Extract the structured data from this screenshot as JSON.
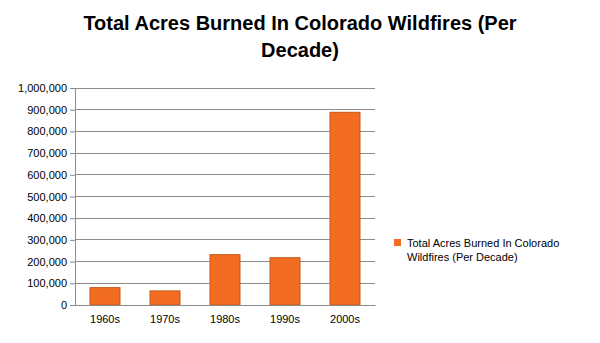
{
  "chart_data": {
    "type": "bar",
    "title": "Total Acres Burned In Colorado Wildfires (Per Decade)",
    "categories": [
      "1960s",
      "1970s",
      "1980s",
      "1990s",
      "2000s"
    ],
    "series": [
      {
        "name": "Total Acres Burned In Colorado Wildfires (Per Decade)",
        "color": "#f26d21",
        "values": [
          80000,
          65000,
          232000,
          218000,
          888000
        ]
      }
    ],
    "ylim": [
      0,
      1000000
    ],
    "yticks": [
      0,
      {
        "value": 100000,
        "label": "100,000"
      },
      {
        "value": 200000,
        "label": "200,000"
      },
      {
        "value": 300000,
        "label": "300,000"
      },
      {
        "value": 400000,
        "label": "400,000"
      },
      {
        "value": 500000,
        "label": "500,000"
      },
      {
        "value": 600000,
        "label": "600,000"
      },
      {
        "value": 700000,
        "label": "700,000"
      },
      {
        "value": 800000,
        "label": "800,000"
      },
      {
        "value": 900000,
        "label": "900,000"
      },
      {
        "value": 1000000,
        "label": "1,000,000"
      }
    ],
    "grid": true,
    "legend": "right"
  }
}
